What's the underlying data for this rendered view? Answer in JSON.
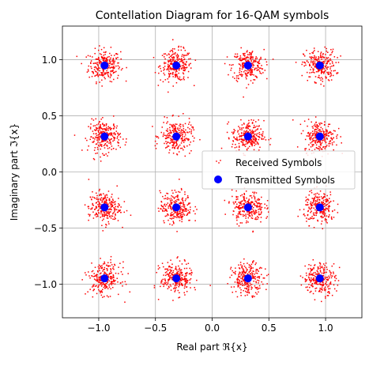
{
  "chart_data": {
    "type": "scatter",
    "title": "Contellation Diagram for 16-QAM symbols",
    "xlabel": "Real part ℜ{x}",
    "ylabel": "Imaginary part ℑ{x}",
    "xlim": [
      -1.32,
      1.32
    ],
    "ylim": [
      -1.3,
      1.3
    ],
    "xticks": [
      -1.0,
      -0.5,
      0.0,
      0.5,
      1.0
    ],
    "xtick_labels": [
      "−1.0",
      "−0.5",
      "0.0",
      "0.5",
      "1.0"
    ],
    "yticks": [
      -1.0,
      -0.5,
      0.0,
      0.5,
      1.0
    ],
    "ytick_labels": [
      "−1.0",
      "−0.5",
      "0.0",
      "0.5",
      "1.0"
    ],
    "grid": true,
    "legend_position": "center-right",
    "series": [
      {
        "name": "Received Symbols",
        "marker": "small-dot",
        "color": "#ff0000",
        "spread_std": 0.07,
        "points_per_symbol": 250
      },
      {
        "name": "Transmitted Symbols",
        "marker": "circle",
        "color": "#0000ff",
        "points": [
          [
            -0.949,
            0.949
          ],
          [
            -0.316,
            0.949
          ],
          [
            0.316,
            0.949
          ],
          [
            0.949,
            0.949
          ],
          [
            -0.949,
            0.316
          ],
          [
            -0.316,
            0.316
          ],
          [
            0.316,
            0.316
          ],
          [
            0.949,
            0.316
          ],
          [
            -0.949,
            -0.316
          ],
          [
            -0.316,
            -0.316
          ],
          [
            0.316,
            -0.316
          ],
          [
            0.949,
            -0.316
          ],
          [
            -0.949,
            -0.949
          ],
          [
            -0.316,
            -0.949
          ],
          [
            0.316,
            -0.949
          ],
          [
            0.949,
            -0.949
          ]
        ]
      }
    ]
  }
}
